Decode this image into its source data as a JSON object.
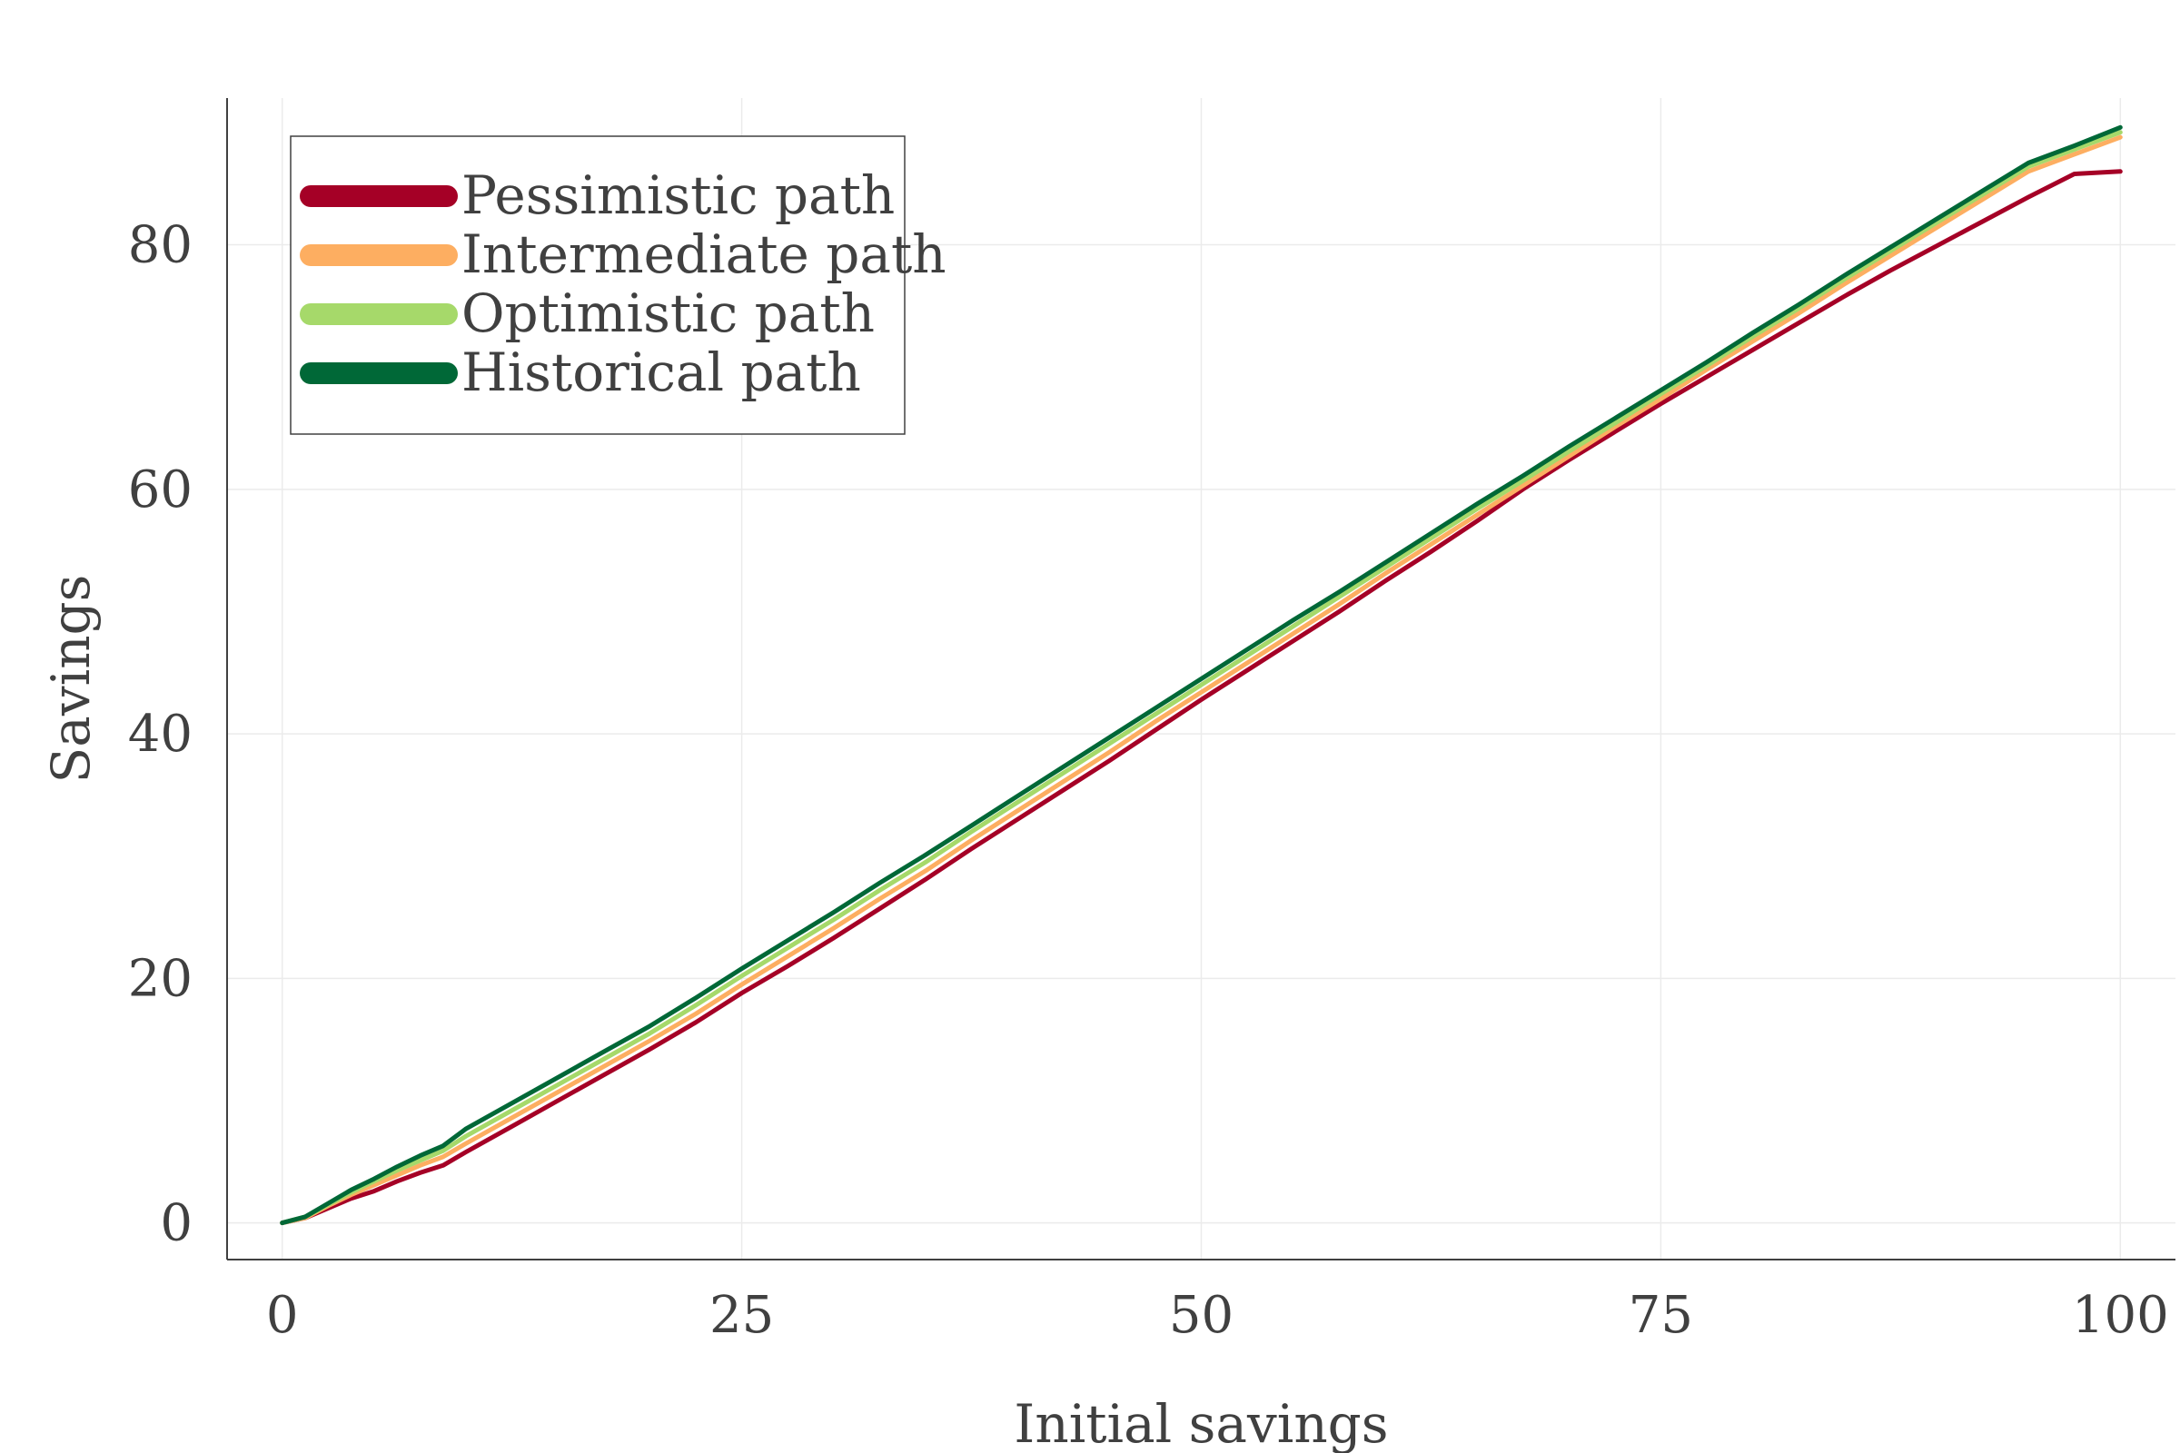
{
  "colors": {
    "pessimistic": "#a50026",
    "intermediate": "#fdae61",
    "optimistic": "#a6d96a",
    "historical": "#006837",
    "axis": "#404040",
    "grid": "#ebebeb"
  },
  "chart_data": {
    "type": "line",
    "title": "",
    "xlabel": "Initial savings",
    "ylabel": "Savings",
    "xlim": [
      -3,
      103
    ],
    "ylim": [
      -3,
      92
    ],
    "xticks": [
      0,
      25,
      50,
      75,
      100
    ],
    "yticks": [
      0,
      20,
      40,
      60,
      80
    ],
    "xtick_labels": [
      "0",
      "25",
      "50",
      "75",
      "100"
    ],
    "ytick_labels": [
      "0",
      "20",
      "40",
      "60",
      "80"
    ],
    "grid": true,
    "legend_position": "top-left",
    "x": [
      0,
      1.25,
      2.5,
      3.75,
      5,
      6.25,
      7.5,
      8.75,
      10,
      12.5,
      15,
      17.5,
      20,
      22.5,
      25,
      27.5,
      30,
      32.5,
      35,
      37.5,
      40,
      42.5,
      45,
      47.5,
      50,
      52.5,
      55,
      57.5,
      60,
      62.5,
      65,
      67.5,
      70,
      72.5,
      75,
      77.5,
      80,
      82.5,
      85,
      87.5,
      90,
      92.5,
      95,
      97.5,
      100
    ],
    "series": [
      {
        "name": "Pessimistic path",
        "color_key": "pessimistic",
        "values": [
          0,
          0.4,
          1.2,
          2.0,
          2.6,
          3.4,
          4.1,
          4.7,
          5.8,
          7.9,
          10.0,
          12.1,
          14.2,
          16.4,
          18.8,
          21.0,
          23.3,
          25.7,
          28.1,
          30.6,
          33.0,
          35.4,
          37.8,
          40.3,
          42.8,
          45.2,
          47.6,
          50.0,
          52.5,
          54.9,
          57.4,
          60.0,
          62.4,
          64.7,
          67.0,
          69.2,
          71.4,
          73.6,
          75.8,
          77.9,
          79.9,
          81.9,
          83.9,
          85.8,
          86.0
        ]
      },
      {
        "name": "Intermediate path",
        "color_key": "intermediate",
        "values": [
          0,
          0.4,
          1.4,
          2.3,
          3.1,
          3.9,
          4.7,
          5.4,
          6.5,
          8.6,
          10.7,
          12.8,
          14.9,
          17.1,
          19.5,
          21.8,
          24.1,
          26.5,
          28.8,
          31.3,
          33.7,
          36.1,
          38.5,
          41.0,
          43.4,
          45.8,
          48.2,
          50.6,
          53.1,
          55.5,
          57.9,
          60.3,
          62.7,
          65.1,
          67.4,
          69.8,
          72.1,
          74.4,
          76.8,
          79.1,
          81.4,
          83.7,
          86.0,
          87.4,
          88.8
        ]
      },
      {
        "name": "Optimistic path",
        "color_key": "optimistic",
        "values": [
          0,
          0.5,
          1.5,
          2.5,
          3.4,
          4.3,
          5.1,
          5.9,
          7.1,
          9.2,
          11.3,
          13.4,
          15.5,
          17.8,
          20.2,
          22.5,
          24.8,
          27.2,
          29.5,
          32.0,
          34.4,
          36.8,
          39.2,
          41.6,
          44.0,
          46.4,
          48.8,
          51.2,
          53.6,
          56.0,
          58.4,
          60.7,
          63.1,
          65.4,
          67.8,
          70.1,
          72.5,
          74.8,
          77.2,
          79.5,
          81.8,
          84.1,
          86.4,
          87.8,
          89.2
        ]
      },
      {
        "name": "Historical path",
        "color_key": "historical",
        "values": [
          0,
          0.5,
          1.6,
          2.7,
          3.6,
          4.6,
          5.5,
          6.3,
          7.7,
          9.8,
          11.9,
          14.0,
          16.1,
          18.4,
          20.8,
          23.1,
          25.4,
          27.8,
          30.1,
          32.5,
          34.9,
          37.3,
          39.7,
          42.1,
          44.5,
          46.9,
          49.3,
          51.6,
          54.0,
          56.4,
          58.8,
          61.1,
          63.5,
          65.8,
          68.1,
          70.4,
          72.8,
          75.1,
          77.5,
          79.8,
          82.1,
          84.4,
          86.7,
          88.1,
          89.6
        ]
      }
    ]
  }
}
